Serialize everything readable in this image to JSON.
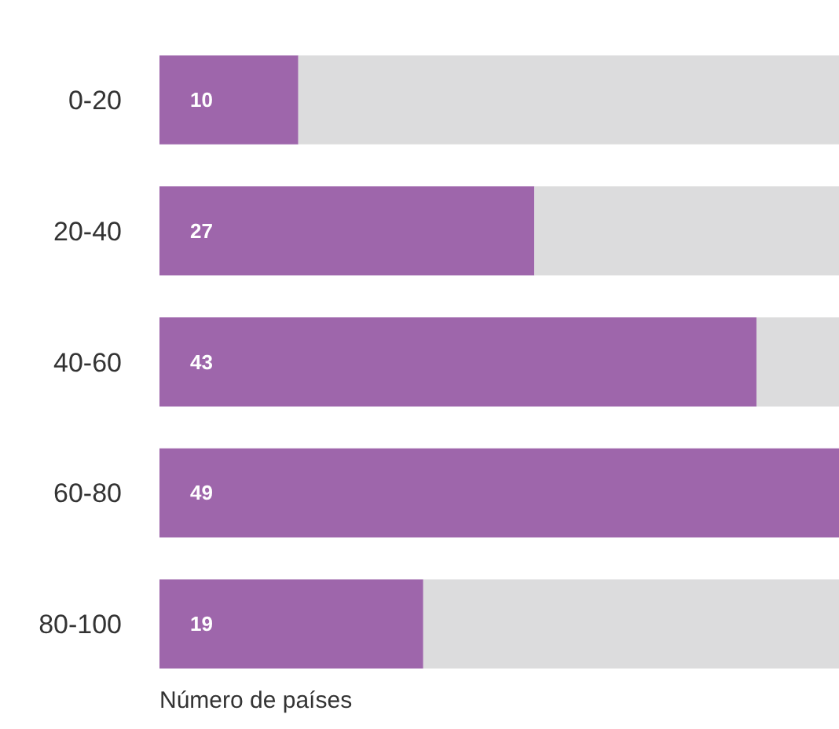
{
  "chart_data": {
    "type": "bar",
    "orientation": "horizontal",
    "stacked": true,
    "xlabel": "Número de países",
    "categories": [
      "0-20",
      "20-40",
      "40-60",
      "60-80",
      "80-100"
    ],
    "series": [
      {
        "color": "#9e66ab",
        "values": [
          10,
          27,
          43,
          49,
          19
        ],
        "value_labels": [
          "10",
          "27",
          "43",
          "49",
          "19"
        ]
      },
      {
        "color": "#dcdcdd",
        "values": [
          39,
          22,
          6,
          0,
          30
        ]
      }
    ],
    "xlim": [
      0,
      49
    ],
    "tick_labels": "y",
    "grid": false
  }
}
